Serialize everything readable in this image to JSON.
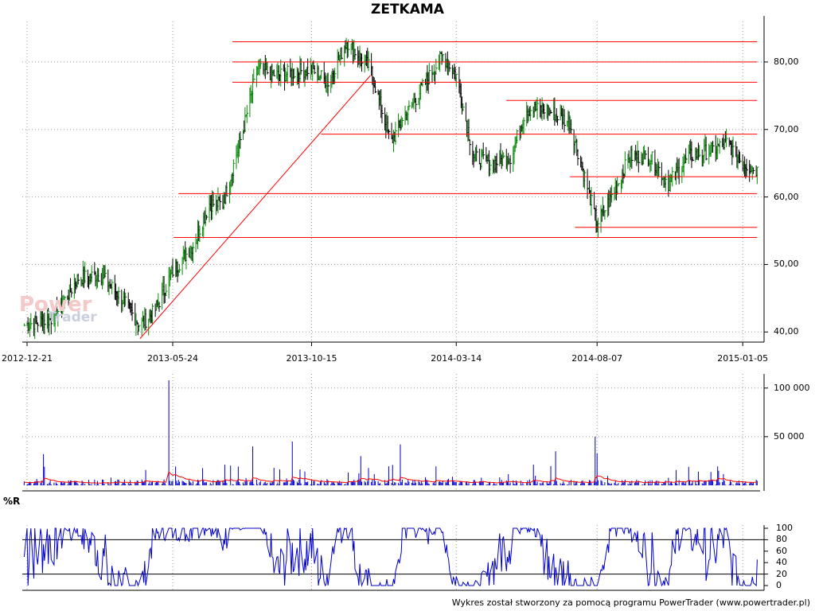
{
  "title": "ZETKAMA",
  "footer": "Wykres został stworzony za pomocą programu PowerTrader (www.powertrader.pl)",
  "watermark": {
    "line1": "Power",
    "line2": "Trader"
  },
  "colors": {
    "up": "#0a8a0a",
    "down": "#000000",
    "level": "#ff0000",
    "volume": "#0000cc",
    "volume_avg": "#ff0000",
    "wr": "#0000cc",
    "grid": "#9a9a9a"
  },
  "chart_data": [
    {
      "type": "line",
      "panel": "price",
      "subtype": "ohlc",
      "x_tick_labels": [
        "2012-12-21",
        "2013-05-24",
        "2013-10-15",
        "2014-03-14",
        "2014-08-07",
        "2015-01-05"
      ],
      "y_tick_labels": [
        "40,00",
        "50,00",
        "60,00",
        "70,00",
        "80,00"
      ],
      "y_ticks": [
        40,
        50,
        60,
        70,
        80
      ],
      "ylim": [
        38.5,
        86
      ],
      "grid": true,
      "key_points": [
        {
          "date": "2012-12-21",
          "close": 41
        },
        {
          "date": "2013-01-20",
          "close": 42
        },
        {
          "date": "2013-02-15",
          "close": 48
        },
        {
          "date": "2013-03-10",
          "close": 48.5
        },
        {
          "date": "2013-04-01",
          "close": 45
        },
        {
          "date": "2013-04-20",
          "close": 41
        },
        {
          "date": "2013-05-05",
          "close": 43
        },
        {
          "date": "2013-05-24",
          "close": 49
        },
        {
          "date": "2013-06-15",
          "close": 53
        },
        {
          "date": "2013-07-01",
          "close": 59
        },
        {
          "date": "2013-07-15",
          "close": 59
        },
        {
          "date": "2013-08-05",
          "close": 70
        },
        {
          "date": "2013-08-20",
          "close": 79
        },
        {
          "date": "2013-09-10",
          "close": 78
        },
        {
          "date": "2013-10-15",
          "close": 79
        },
        {
          "date": "2013-11-01",
          "close": 77
        },
        {
          "date": "2013-11-20",
          "close": 83
        },
        {
          "date": "2013-12-15",
          "close": 79
        },
        {
          "date": "2014-01-05",
          "close": 68
        },
        {
          "date": "2014-01-20",
          "close": 72
        },
        {
          "date": "2014-02-10",
          "close": 77
        },
        {
          "date": "2014-02-28",
          "close": 81
        },
        {
          "date": "2014-03-14",
          "close": 78
        },
        {
          "date": "2014-04-01",
          "close": 66
        },
        {
          "date": "2014-04-20",
          "close": 65
        },
        {
          "date": "2014-05-10",
          "close": 66
        },
        {
          "date": "2014-05-25",
          "close": 73
        },
        {
          "date": "2014-06-15",
          "close": 73
        },
        {
          "date": "2014-07-10",
          "close": 71
        },
        {
          "date": "2014-08-07",
          "close": 56
        },
        {
          "date": "2014-08-25",
          "close": 61
        },
        {
          "date": "2014-09-10",
          "close": 66
        },
        {
          "date": "2014-10-01",
          "close": 66
        },
        {
          "date": "2014-10-20",
          "close": 62
        },
        {
          "date": "2014-11-10",
          "close": 66
        },
        {
          "date": "2014-12-05",
          "close": 67
        },
        {
          "date": "2014-12-20",
          "close": 68
        },
        {
          "date": "2015-01-05",
          "close": 65
        },
        {
          "date": "2015-01-20",
          "close": 64
        }
      ],
      "horizontal_levels": [
        {
          "value": 83,
          "from": "2013-07-25",
          "to": "2015-01-20"
        },
        {
          "value": 80,
          "from": "2013-07-25",
          "to": "2015-01-20"
        },
        {
          "value": 77,
          "from": "2013-07-25",
          "to": "2015-01-20"
        },
        {
          "value": 74.3,
          "from": "2014-05-05",
          "to": "2015-01-20"
        },
        {
          "value": 69.3,
          "from": "2013-10-25",
          "to": "2015-01-20"
        },
        {
          "value": 63,
          "from": "2014-07-10",
          "to": "2015-01-20"
        },
        {
          "value": 60.5,
          "from": "2013-05-30",
          "to": "2015-01-20"
        },
        {
          "value": 55.5,
          "from": "2014-07-15",
          "to": "2015-01-20"
        },
        {
          "value": 54,
          "from": "2013-05-25",
          "to": "2015-01-20"
        }
      ],
      "trendline": {
        "from": {
          "date": "2013-04-20",
          "value": 39
        },
        "to": {
          "date": "2013-12-15",
          "value": 78
        }
      }
    },
    {
      "type": "bar",
      "panel": "volume",
      "y_tick_labels": [
        "50 000",
        "100 000"
      ],
      "y_ticks": [
        50000,
        100000
      ],
      "ylim": [
        0,
        108000
      ],
      "grid": true,
      "spikes": [
        {
          "date": "2013-05-20",
          "value": 110000
        },
        {
          "date": "2014-08-05",
          "value": 50000
        },
        {
          "date": "2013-09-25",
          "value": 45000
        },
        {
          "date": "2014-01-15",
          "value": 42000
        },
        {
          "date": "2013-08-15",
          "value": 40000
        },
        {
          "date": "2014-06-25",
          "value": 35000
        },
        {
          "date": "2014-08-07",
          "value": 33000
        },
        {
          "date": "2013-01-10",
          "value": 32000
        },
        {
          "date": "2013-12-05",
          "value": 30000
        }
      ]
    },
    {
      "type": "line",
      "panel": "indicator",
      "indicator_label": "%R",
      "y_tick_labels": [
        "0",
        "20",
        "40",
        "60",
        "80",
        "100"
      ],
      "y_ticks": [
        0,
        20,
        40,
        60,
        80,
        100
      ],
      "ylim": [
        0,
        100
      ],
      "reference_lines": [
        20,
        80
      ],
      "grid": true
    }
  ]
}
